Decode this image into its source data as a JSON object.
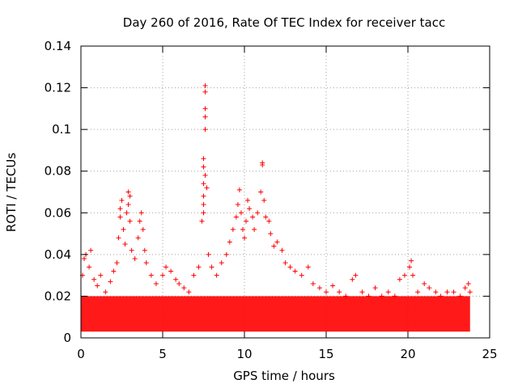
{
  "chart_data": {
    "type": "scatter",
    "title": "Day 260 of 2016, Rate Of TEC Index for receiver tacc",
    "xlabel": "GPS time / hours",
    "ylabel": "ROTI / TECUs",
    "xlim": [
      0,
      25
    ],
    "ylim": [
      0,
      0.14
    ],
    "xticks": [
      "0",
      "5",
      "10",
      "15",
      "20",
      "25"
    ],
    "yticks": [
      "0",
      "0.02",
      "0.04",
      "0.06",
      "0.08",
      "0.1",
      "0.12",
      "0.14"
    ],
    "grid": true,
    "marker": "+",
    "color": "#ff0000",
    "background_band": {
      "x_from": 0,
      "x_to": 23.8,
      "y_from": 0.003,
      "y_to": 0.02
    },
    "series": [
      {
        "name": "ROTI",
        "points": [
          [
            0.1,
            0.03
          ],
          [
            0.2,
            0.038
          ],
          [
            0.3,
            0.04
          ],
          [
            0.5,
            0.034
          ],
          [
            0.6,
            0.042
          ],
          [
            0.8,
            0.028
          ],
          [
            1.0,
            0.025
          ],
          [
            1.2,
            0.03
          ],
          [
            1.5,
            0.022
          ],
          [
            1.8,
            0.027
          ],
          [
            2.0,
            0.032
          ],
          [
            2.2,
            0.036
          ],
          [
            2.3,
            0.048
          ],
          [
            2.4,
            0.058
          ],
          [
            2.4,
            0.062
          ],
          [
            2.5,
            0.066
          ],
          [
            2.6,
            0.052
          ],
          [
            2.7,
            0.045
          ],
          [
            2.8,
            0.06
          ],
          [
            2.9,
            0.064
          ],
          [
            2.9,
            0.07
          ],
          [
            3.0,
            0.068
          ],
          [
            3.0,
            0.056
          ],
          [
            3.1,
            0.042
          ],
          [
            3.3,
            0.038
          ],
          [
            3.5,
            0.048
          ],
          [
            3.6,
            0.056
          ],
          [
            3.7,
            0.06
          ],
          [
            3.8,
            0.052
          ],
          [
            3.9,
            0.042
          ],
          [
            4.0,
            0.036
          ],
          [
            4.3,
            0.03
          ],
          [
            4.6,
            0.026
          ],
          [
            5.0,
            0.03
          ],
          [
            5.2,
            0.034
          ],
          [
            5.5,
            0.032
          ],
          [
            5.8,
            0.028
          ],
          [
            6.0,
            0.026
          ],
          [
            6.3,
            0.024
          ],
          [
            6.6,
            0.022
          ],
          [
            6.9,
            0.03
          ],
          [
            7.2,
            0.034
          ],
          [
            7.4,
            0.056
          ],
          [
            7.5,
            0.06
          ],
          [
            7.5,
            0.064
          ],
          [
            7.5,
            0.068
          ],
          [
            7.5,
            0.074
          ],
          [
            7.6,
            0.078
          ],
          [
            7.5,
            0.082
          ],
          [
            7.5,
            0.086
          ],
          [
            7.6,
            0.1
          ],
          [
            7.6,
            0.106
          ],
          [
            7.6,
            0.11
          ],
          [
            7.6,
            0.118
          ],
          [
            7.6,
            0.121
          ],
          [
            7.7,
            0.072
          ],
          [
            7.8,
            0.04
          ],
          [
            8.0,
            0.034
          ],
          [
            8.3,
            0.03
          ],
          [
            8.6,
            0.036
          ],
          [
            8.9,
            0.04
          ],
          [
            9.1,
            0.046
          ],
          [
            9.3,
            0.052
          ],
          [
            9.5,
            0.058
          ],
          [
            9.6,
            0.064
          ],
          [
            9.7,
            0.071
          ],
          [
            9.8,
            0.06
          ],
          [
            9.9,
            0.052
          ],
          [
            10.0,
            0.048
          ],
          [
            10.1,
            0.056
          ],
          [
            10.2,
            0.066
          ],
          [
            10.3,
            0.062
          ],
          [
            10.5,
            0.058
          ],
          [
            10.6,
            0.052
          ],
          [
            10.8,
            0.06
          ],
          [
            11.0,
            0.07
          ],
          [
            11.1,
            0.084
          ],
          [
            11.1,
            0.083
          ],
          [
            11.2,
            0.066
          ],
          [
            11.3,
            0.058
          ],
          [
            11.5,
            0.056
          ],
          [
            11.6,
            0.05
          ],
          [
            11.8,
            0.044
          ],
          [
            12.0,
            0.046
          ],
          [
            12.3,
            0.042
          ],
          [
            12.5,
            0.036
          ],
          [
            12.8,
            0.034
          ],
          [
            13.1,
            0.032
          ],
          [
            13.5,
            0.03
          ],
          [
            13.9,
            0.034
          ],
          [
            14.2,
            0.026
          ],
          [
            14.6,
            0.024
          ],
          [
            15.0,
            0.022
          ],
          [
            15.4,
            0.025
          ],
          [
            15.8,
            0.022
          ],
          [
            16.2,
            0.02
          ],
          [
            16.6,
            0.028
          ],
          [
            16.8,
            0.03
          ],
          [
            17.2,
            0.022
          ],
          [
            17.6,
            0.02
          ],
          [
            18.0,
            0.024
          ],
          [
            18.4,
            0.02
          ],
          [
            18.8,
            0.022
          ],
          [
            19.2,
            0.02
          ],
          [
            19.5,
            0.028
          ],
          [
            19.8,
            0.03
          ],
          [
            20.1,
            0.034
          ],
          [
            20.2,
            0.037
          ],
          [
            20.3,
            0.03
          ],
          [
            20.6,
            0.022
          ],
          [
            21.0,
            0.026
          ],
          [
            21.3,
            0.024
          ],
          [
            21.7,
            0.022
          ],
          [
            22.0,
            0.02
          ],
          [
            22.4,
            0.022
          ],
          [
            22.8,
            0.022
          ],
          [
            23.2,
            0.02
          ],
          [
            23.5,
            0.024
          ],
          [
            23.7,
            0.026
          ],
          [
            23.8,
            0.022
          ]
        ]
      }
    ]
  }
}
